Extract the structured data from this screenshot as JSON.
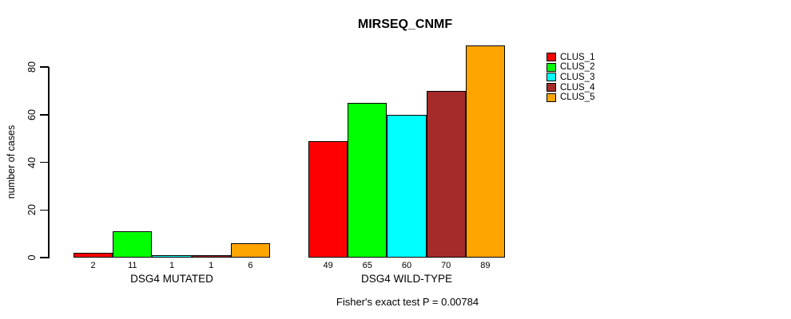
{
  "title": "MIRSEQ_CNMF",
  "ylabel": "number of cases",
  "caption": "Fisher's exact test P = 0.00784",
  "chart_data": {
    "type": "bar",
    "grouped": true,
    "title": "MIRSEQ_CNMF",
    "xlabel": "",
    "ylabel": "number of cases",
    "categories": [
      "DSG4 MUTATED",
      "DSG4 WILD-TYPE"
    ],
    "series": [
      {
        "name": "CLUS_1",
        "color": "#FF0000",
        "values": [
          2,
          49
        ]
      },
      {
        "name": "CLUS_2",
        "color": "#00FF00",
        "values": [
          11,
          65
        ]
      },
      {
        "name": "CLUS_3",
        "color": "#00FFFF",
        "values": [
          1,
          60
        ]
      },
      {
        "name": "CLUS_4",
        "color": "#A52A2A",
        "values": [
          1,
          70
        ]
      },
      {
        "name": "CLUS_5",
        "color": "#FFA500",
        "values": [
          6,
          89
        ]
      }
    ],
    "bar_value_labels": [
      [
        "2",
        "11",
        "1",
        "1",
        "6"
      ],
      [
        "49",
        "65",
        "60",
        "70",
        "89"
      ]
    ],
    "yticks": [
      "0",
      "20",
      "40",
      "60",
      "80"
    ],
    "ytick_values": [
      0,
      20,
      40,
      60,
      80
    ],
    "ylim": [
      0,
      89
    ],
    "grid": false,
    "legend_position": "right",
    "annotation": "Fisher's exact test P = 0.00784",
    "bar_border_color": "#000000"
  }
}
